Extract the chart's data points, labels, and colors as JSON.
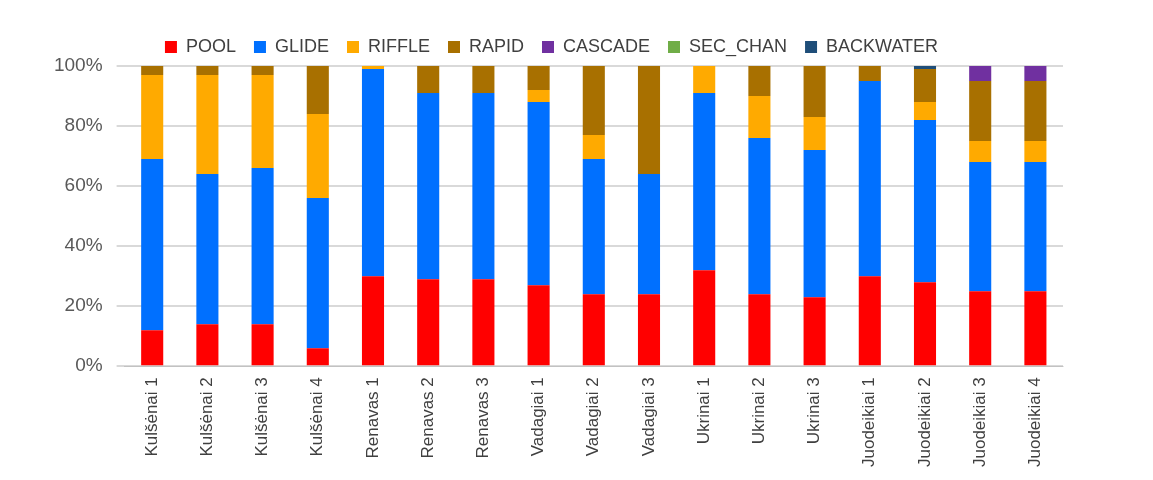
{
  "chart_data": {
    "type": "bar",
    "stacked": true,
    "legend": "top",
    "grid": "y",
    "categories": [
      "Kulšėnai 1",
      "Kulšėnai 2",
      "Kulšėnai 3",
      "Kulšėnai 4",
      "Renavas 1",
      "Renavas 2",
      "Renavas 3",
      "Vadagiai 1",
      "Vadagiai 2",
      "Vadagiai 3",
      "Ukrinai 1",
      "Ukrinai 2",
      "Ukrinai 3",
      "Juodeikiai 1",
      "Juodeikiai 2",
      "Juodeikiai 3",
      "Juodeikiai 4"
    ],
    "series": [
      {
        "name": "POOL",
        "color": "#ff0000",
        "values": [
          12,
          14,
          14,
          6,
          30,
          29,
          29,
          27,
          24,
          24,
          32,
          24,
          23,
          30,
          28,
          25,
          25
        ]
      },
      {
        "name": "GLIDE",
        "color": "#0070ff",
        "values": [
          57,
          50,
          52,
          50,
          69,
          62,
          62,
          61,
          45,
          40,
          59,
          52,
          49,
          65,
          54,
          43,
          43
        ]
      },
      {
        "name": "RIFFLE",
        "color": "#ffaa00",
        "values": [
          28,
          33,
          31,
          28,
          1,
          0,
          0,
          4,
          8,
          0,
          9,
          14,
          11,
          0,
          6,
          7,
          7
        ]
      },
      {
        "name": "RAPID",
        "color": "#a87000",
        "values": [
          3,
          3,
          3,
          16,
          0,
          9,
          9,
          8,
          23,
          36,
          0,
          10,
          17,
          5,
          11,
          20,
          20
        ]
      },
      {
        "name": "CASCADE",
        "color": "#7030a0",
        "values": [
          0,
          0,
          0,
          0,
          0,
          0,
          0,
          0,
          0,
          0,
          0,
          0,
          0,
          0,
          0,
          5,
          5
        ]
      },
      {
        "name": "SEC_CHAN",
        "color": "#70ad47",
        "values": [
          0,
          0,
          0,
          0,
          0,
          0,
          0,
          0,
          0,
          0,
          0,
          0,
          0,
          0,
          0,
          0,
          0
        ]
      },
      {
        "name": "BACKWATER",
        "color": "#1f4e79",
        "values": [
          0,
          0,
          0,
          0,
          0,
          0,
          0,
          0,
          0,
          0,
          0,
          0,
          0,
          0,
          1,
          0,
          0
        ]
      }
    ],
    "ylim": [
      0,
      100
    ],
    "yticks": [
      {
        "value": 0,
        "label": "0%"
      },
      {
        "value": 20,
        "label": "20%"
      },
      {
        "value": 40,
        "label": "40%"
      },
      {
        "value": 60,
        "label": "60%"
      },
      {
        "value": 80,
        "label": "80%"
      },
      {
        "value": 100,
        "label": "100%"
      }
    ]
  }
}
